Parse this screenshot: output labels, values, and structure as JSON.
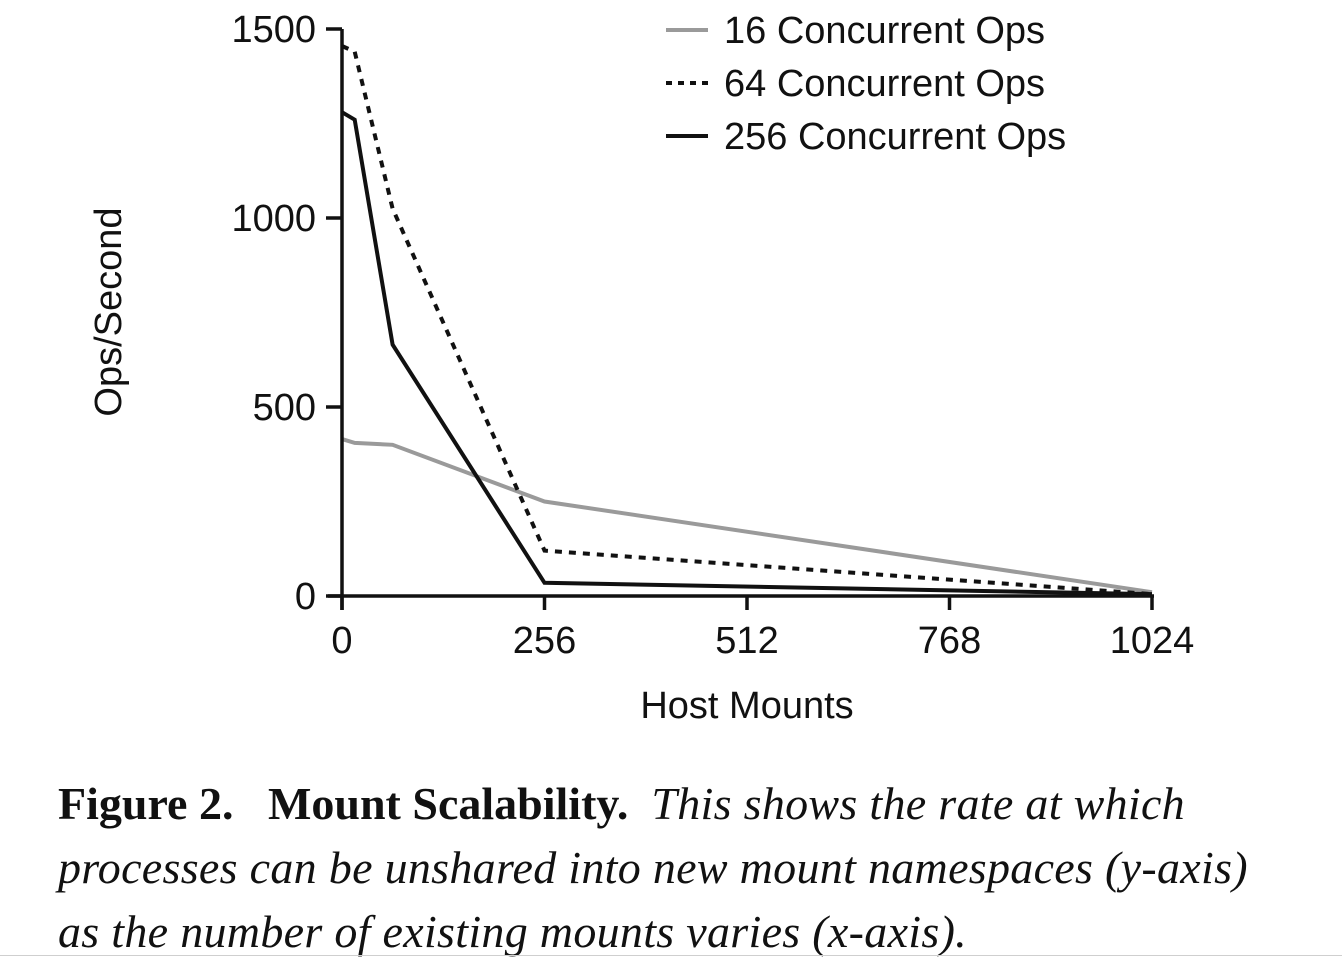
{
  "chart_data": {
    "type": "line",
    "xlabel": "Host Mounts",
    "ylabel": "Ops/Second",
    "xlim": [
      0,
      1024
    ],
    "ylim": [
      0,
      1500
    ],
    "xticks": [
      0,
      256,
      512,
      768,
      1024
    ],
    "yticks": [
      0,
      500,
      1000,
      1500
    ],
    "grid": false,
    "legend_position": "top-right",
    "series": [
      {
        "name": "16 Concurrent Ops",
        "color": "#9a9a9a",
        "dash": "solid",
        "x": [
          0,
          16,
          64,
          256,
          1024
        ],
        "y": [
          415,
          405,
          400,
          250,
          10
        ]
      },
      {
        "name": "64 Concurrent Ops",
        "color": "#111111",
        "dash": "dotted",
        "x": [
          0,
          16,
          64,
          256,
          1024
        ],
        "y": [
          1455,
          1440,
          1025,
          120,
          5
        ]
      },
      {
        "name": "256 Concurrent Ops",
        "color": "#111111",
        "dash": "solid",
        "x": [
          0,
          16,
          64,
          256,
          1024
        ],
        "y": [
          1280,
          1260,
          665,
          35,
          5
        ]
      }
    ]
  },
  "caption": {
    "label": "Figure 2.",
    "title": "Mount Scalability.",
    "text": "This shows the rate at which processes can be unshared into new mount namespaces (y-axis) as the number of existing mounts varies (x-axis)."
  }
}
